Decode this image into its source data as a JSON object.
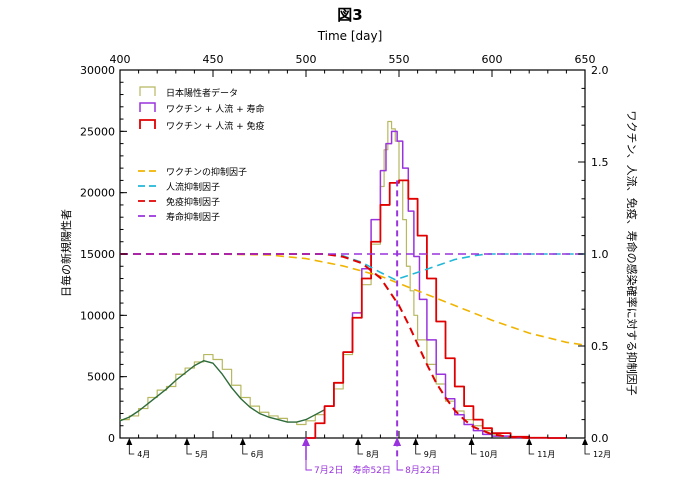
{
  "chart_data": {
    "type": "line",
    "title": "図3",
    "xlabel": "Time [day]",
    "ylabel_left": "日毎の新規陽性者",
    "ylabel_right": "ワクチン、人流、免疫、寿命の感染確率に対する抑制因子",
    "xlim": [
      400,
      650
    ],
    "ylim_left": [
      0,
      30000
    ],
    "ylim_right": [
      0,
      2.0
    ],
    "x_ticks": [
      400,
      450,
      500,
      550,
      600,
      650
    ],
    "y_ticks_left": [
      0,
      5000,
      10000,
      15000,
      20000,
      25000,
      30000
    ],
    "y_ticks_right": [
      0.0,
      0.5,
      1.0,
      1.5,
      2.0
    ],
    "grid": false,
    "legend_position": "top-left",
    "colors": {
      "observed": "#b8b860",
      "observed_fit": "#2e6b3a",
      "model_a": "#9933dd",
      "model_b": "#e00000",
      "vaccine_factor": "#f0b400",
      "mobility_factor": "#22b8d8",
      "immunity_factor": "#e00000",
      "lifespan_factor": "#9933dd",
      "markers": "#9933dd"
    },
    "series": [
      {
        "name": "日本陽性者データ",
        "style": "step",
        "axis": "left",
        "x": [
          400,
          405,
          410,
          415,
          420,
          425,
          430,
          435,
          440,
          445,
          450,
          455,
          460,
          465,
          470,
          475,
          480,
          485,
          490,
          495,
          500,
          505,
          510,
          515,
          520,
          525,
          530,
          535,
          540,
          542,
          544,
          546,
          548,
          550,
          552,
          554,
          556,
          558,
          560,
          565,
          570,
          575,
          580,
          585,
          590,
          595,
          600
        ],
        "y": [
          1500,
          1800,
          2400,
          3300,
          3900,
          4200,
          5200,
          5700,
          6200,
          6800,
          6400,
          5600,
          4300,
          3300,
          2600,
          2100,
          1800,
          1600,
          1300,
          1100,
          1400,
          1900,
          2600,
          4000,
          6800,
          9800,
          12500,
          15800,
          20500,
          23500,
          25800,
          25200,
          24200,
          21000,
          17800,
          14000,
          12000,
          10000,
          8000,
          6000,
          4400,
          3000,
          2200,
          1500,
          1000,
          600,
          300
        ]
      },
      {
        "name": "",
        "style": "smooth",
        "axis": "left",
        "x": [
          400,
          405,
          410,
          415,
          420,
          425,
          430,
          435,
          440,
          445,
          450,
          455,
          460,
          465,
          470,
          475,
          480,
          485,
          490,
          495,
          500,
          505,
          510
        ],
        "y": [
          1400,
          1700,
          2200,
          2800,
          3400,
          4000,
          4700,
          5300,
          5900,
          6300,
          6100,
          5200,
          4100,
          3200,
          2500,
          2000,
          1700,
          1500,
          1300,
          1300,
          1500,
          1900,
          2300
        ]
      },
      {
        "name": "ワクチン + 人流 + 寿命",
        "style": "step",
        "axis": "left",
        "x": [
          500,
          505,
          510,
          515,
          520,
          525,
          530,
          535,
          540,
          543,
          546,
          549,
          552,
          555,
          558,
          561,
          565,
          570,
          575,
          580,
          585,
          590,
          595,
          600,
          610,
          620,
          630
        ],
        "y": [
          0,
          1200,
          2600,
          4500,
          7000,
          10200,
          13800,
          17800,
          21800,
          24000,
          25000,
          24200,
          22000,
          18500,
          14800,
          11300,
          8000,
          5200,
          3200,
          1900,
          1100,
          600,
          300,
          150,
          40,
          10,
          0
        ]
      },
      {
        "name": "ワクチン + 人流 + 免疫",
        "style": "step",
        "axis": "left",
        "x": [
          500,
          505,
          510,
          515,
          520,
          525,
          530,
          535,
          540,
          545,
          550,
          555,
          560,
          565,
          570,
          575,
          580,
          585,
          590,
          595,
          600,
          610,
          620,
          630
        ],
        "y": [
          0,
          1200,
          2600,
          4500,
          7000,
          9800,
          13000,
          16000,
          19000,
          20800,
          21000,
          19500,
          16500,
          13000,
          9500,
          6500,
          4200,
          2600,
          1500,
          800,
          400,
          100,
          20,
          0
        ]
      },
      {
        "name": "ワクチンの抑制因子",
        "style": "dashed",
        "axis": "right",
        "x": [
          400,
          450,
          480,
          500,
          520,
          540,
          560,
          580,
          600,
          620,
          640,
          650
        ],
        "y": [
          1.0,
          1.0,
          0.995,
          0.975,
          0.935,
          0.88,
          0.8,
          0.72,
          0.64,
          0.57,
          0.52,
          0.505
        ]
      },
      {
        "name": "人流抑制因子",
        "style": "dashed",
        "axis": "right",
        "x": [
          400,
          510,
          520,
          530,
          540,
          548,
          560,
          570,
          580,
          590,
          597,
          650
        ],
        "y": [
          1.0,
          1.0,
          0.99,
          0.955,
          0.9,
          0.86,
          0.9,
          0.935,
          0.97,
          0.99,
          1.0,
          1.0
        ]
      },
      {
        "name": "免疫抑制因子",
        "style": "dashed",
        "axis": "right",
        "x": [
          400,
          510,
          520,
          530,
          540,
          550,
          555,
          560,
          565,
          570,
          575,
          580,
          585,
          590,
          600,
          610,
          620
        ],
        "y": [
          1.0,
          1.0,
          0.985,
          0.95,
          0.87,
          0.72,
          0.62,
          0.51,
          0.4,
          0.3,
          0.22,
          0.15,
          0.1,
          0.06,
          0.02,
          0.005,
          0.0
        ]
      },
      {
        "name": "寿命抑制因子",
        "style": "dashed",
        "axis": "right",
        "x": [
          400,
          550,
          551,
          650
        ],
        "y": [
          1.0,
          1.0,
          1.0,
          1.0
        ]
      }
    ],
    "month_ticks": [
      {
        "x": 405,
        "label": "4月"
      },
      {
        "x": 436,
        "label": "5月"
      },
      {
        "x": 466,
        "label": "6月"
      },
      {
        "x": 528,
        "label": "8月"
      },
      {
        "x": 559,
        "label": "9月"
      },
      {
        "x": 589,
        "label": "10月"
      },
      {
        "x": 620,
        "label": "11月"
      },
      {
        "x": 650,
        "label": "12月"
      }
    ],
    "event_markers": [
      {
        "x": 500,
        "label": "7月2日　寿命52日",
        "dashed": false
      },
      {
        "x": 549,
        "label": "8月22日",
        "dashed": true
      }
    ]
  }
}
